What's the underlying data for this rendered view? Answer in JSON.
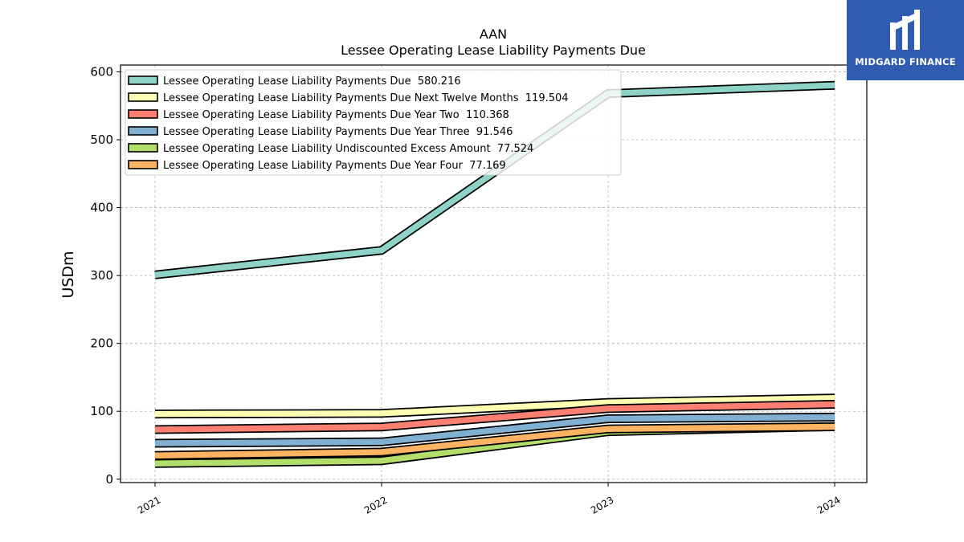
{
  "header": {
    "ticker": "AAN",
    "title": "Lessee Operating Lease Liability Payments Due"
  },
  "brand": {
    "name": "MIDGARD FINANCE",
    "color": "#2f5bb0"
  },
  "chart_data": {
    "type": "line",
    "title": "AAN\nLessee Operating Lease Liability Payments Due",
    "xlabel": "",
    "ylabel": "USDm",
    "x": [
      "2021",
      "2022",
      "2023",
      "2024"
    ],
    "ylim": [
      -5,
      610
    ],
    "yticks": [
      0,
      100,
      200,
      300,
      400,
      500,
      600
    ],
    "grid": true,
    "legend_position": "top-left",
    "series": [
      {
        "name": "Lessee Operating Lease Liability Payments Due",
        "legend_value": "580.216",
        "color": "#8dd3c7",
        "values": [
          301,
          337,
          568,
          580.216
        ]
      },
      {
        "name": "Lessee Operating Lease Liability Payments Due Next Twelve Months",
        "legend_value": "119.504",
        "color": "#ffffb3",
        "values": [
          96,
          97,
          113,
          119.504
        ]
      },
      {
        "name": "Lessee Operating Lease Liability Payments Due Year Two",
        "legend_value": "110.368",
        "color": "#fb8072",
        "values": [
          73,
          77,
          104,
          110.368
        ]
      },
      {
        "name": "Lessee Operating Lease Liability Payments Due Year Three",
        "legend_value": "91.546",
        "color": "#80b1d3",
        "values": [
          53,
          55,
          89,
          91.546
        ]
      },
      {
        "name": "Lessee Operating Lease Liability Undiscounted Excess Amount",
        "legend_value": "77.524",
        "color": "#b3de69",
        "values": [
          23,
          27,
          70,
          77.524
        ]
      },
      {
        "name": "Lessee Operating Lease Liability Payments Due Year Four",
        "legend_value": "77.169",
        "color": "#fdb462",
        "values": [
          35,
          40,
          74,
          77.169
        ]
      }
    ]
  }
}
